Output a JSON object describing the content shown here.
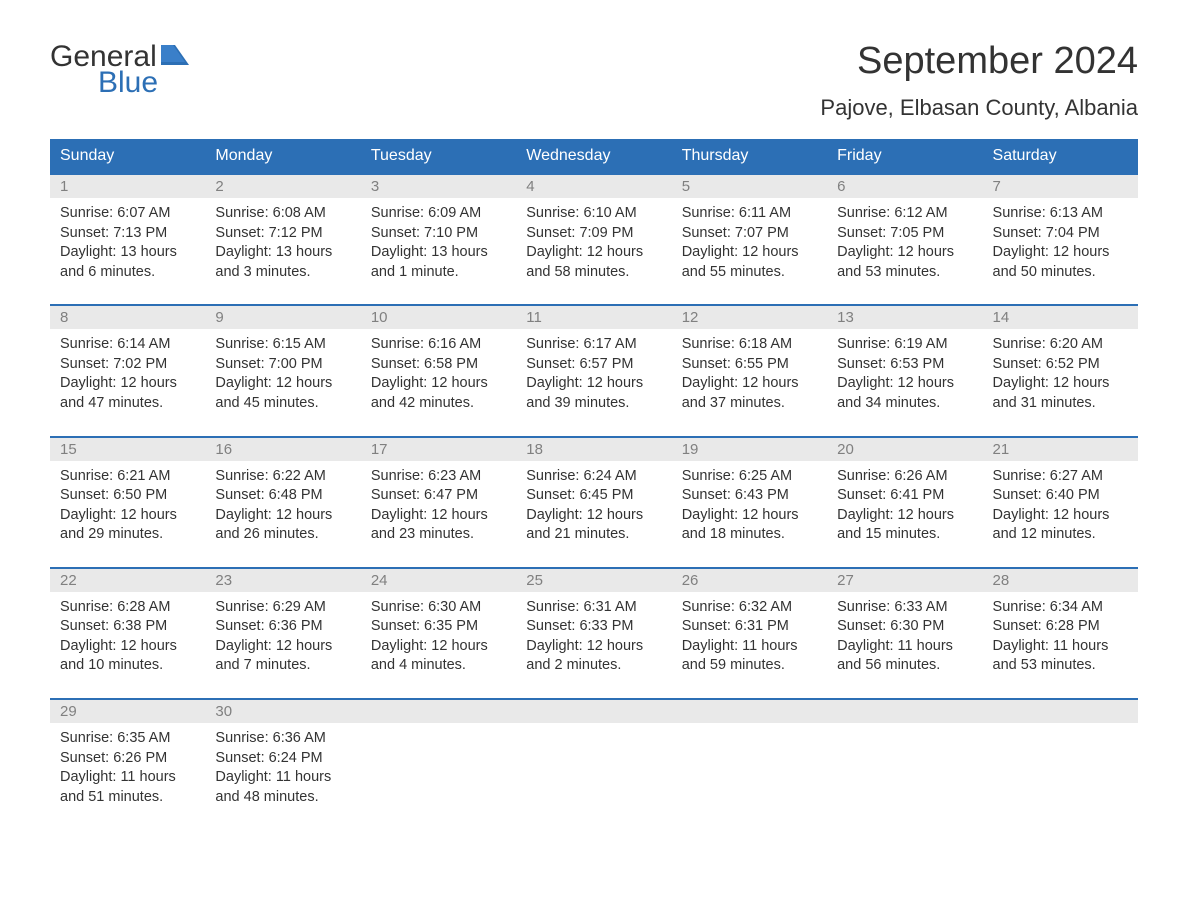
{
  "logo": {
    "text1": "General",
    "text2": "Blue",
    "color_general": "#333333",
    "color_blue": "#2c6fb5"
  },
  "title": "September 2024",
  "location": "Pajove, Elbasan County, Albania",
  "header_bg": "#2c6fb5",
  "header_text_color": "#ffffff",
  "daynum_bg": "#e9e9e9",
  "daynum_color": "#808080",
  "border_color": "#2c6fb5",
  "body_text_color": "#333333",
  "days_of_week": [
    "Sunday",
    "Monday",
    "Tuesday",
    "Wednesday",
    "Thursday",
    "Friday",
    "Saturday"
  ],
  "weeks": [
    [
      {
        "num": "1",
        "sunrise": "Sunrise: 6:07 AM",
        "sunset": "Sunset: 7:13 PM",
        "daylight1": "Daylight: 13 hours",
        "daylight2": "and 6 minutes."
      },
      {
        "num": "2",
        "sunrise": "Sunrise: 6:08 AM",
        "sunset": "Sunset: 7:12 PM",
        "daylight1": "Daylight: 13 hours",
        "daylight2": "and 3 minutes."
      },
      {
        "num": "3",
        "sunrise": "Sunrise: 6:09 AM",
        "sunset": "Sunset: 7:10 PM",
        "daylight1": "Daylight: 13 hours",
        "daylight2": "and 1 minute."
      },
      {
        "num": "4",
        "sunrise": "Sunrise: 6:10 AM",
        "sunset": "Sunset: 7:09 PM",
        "daylight1": "Daylight: 12 hours",
        "daylight2": "and 58 minutes."
      },
      {
        "num": "5",
        "sunrise": "Sunrise: 6:11 AM",
        "sunset": "Sunset: 7:07 PM",
        "daylight1": "Daylight: 12 hours",
        "daylight2": "and 55 minutes."
      },
      {
        "num": "6",
        "sunrise": "Sunrise: 6:12 AM",
        "sunset": "Sunset: 7:05 PM",
        "daylight1": "Daylight: 12 hours",
        "daylight2": "and 53 minutes."
      },
      {
        "num": "7",
        "sunrise": "Sunrise: 6:13 AM",
        "sunset": "Sunset: 7:04 PM",
        "daylight1": "Daylight: 12 hours",
        "daylight2": "and 50 minutes."
      }
    ],
    [
      {
        "num": "8",
        "sunrise": "Sunrise: 6:14 AM",
        "sunset": "Sunset: 7:02 PM",
        "daylight1": "Daylight: 12 hours",
        "daylight2": "and 47 minutes."
      },
      {
        "num": "9",
        "sunrise": "Sunrise: 6:15 AM",
        "sunset": "Sunset: 7:00 PM",
        "daylight1": "Daylight: 12 hours",
        "daylight2": "and 45 minutes."
      },
      {
        "num": "10",
        "sunrise": "Sunrise: 6:16 AM",
        "sunset": "Sunset: 6:58 PM",
        "daylight1": "Daylight: 12 hours",
        "daylight2": "and 42 minutes."
      },
      {
        "num": "11",
        "sunrise": "Sunrise: 6:17 AM",
        "sunset": "Sunset: 6:57 PM",
        "daylight1": "Daylight: 12 hours",
        "daylight2": "and 39 minutes."
      },
      {
        "num": "12",
        "sunrise": "Sunrise: 6:18 AM",
        "sunset": "Sunset: 6:55 PM",
        "daylight1": "Daylight: 12 hours",
        "daylight2": "and 37 minutes."
      },
      {
        "num": "13",
        "sunrise": "Sunrise: 6:19 AM",
        "sunset": "Sunset: 6:53 PM",
        "daylight1": "Daylight: 12 hours",
        "daylight2": "and 34 minutes."
      },
      {
        "num": "14",
        "sunrise": "Sunrise: 6:20 AM",
        "sunset": "Sunset: 6:52 PM",
        "daylight1": "Daylight: 12 hours",
        "daylight2": "and 31 minutes."
      }
    ],
    [
      {
        "num": "15",
        "sunrise": "Sunrise: 6:21 AM",
        "sunset": "Sunset: 6:50 PM",
        "daylight1": "Daylight: 12 hours",
        "daylight2": "and 29 minutes."
      },
      {
        "num": "16",
        "sunrise": "Sunrise: 6:22 AM",
        "sunset": "Sunset: 6:48 PM",
        "daylight1": "Daylight: 12 hours",
        "daylight2": "and 26 minutes."
      },
      {
        "num": "17",
        "sunrise": "Sunrise: 6:23 AM",
        "sunset": "Sunset: 6:47 PM",
        "daylight1": "Daylight: 12 hours",
        "daylight2": "and 23 minutes."
      },
      {
        "num": "18",
        "sunrise": "Sunrise: 6:24 AM",
        "sunset": "Sunset: 6:45 PM",
        "daylight1": "Daylight: 12 hours",
        "daylight2": "and 21 minutes."
      },
      {
        "num": "19",
        "sunrise": "Sunrise: 6:25 AM",
        "sunset": "Sunset: 6:43 PM",
        "daylight1": "Daylight: 12 hours",
        "daylight2": "and 18 minutes."
      },
      {
        "num": "20",
        "sunrise": "Sunrise: 6:26 AM",
        "sunset": "Sunset: 6:41 PM",
        "daylight1": "Daylight: 12 hours",
        "daylight2": "and 15 minutes."
      },
      {
        "num": "21",
        "sunrise": "Sunrise: 6:27 AM",
        "sunset": "Sunset: 6:40 PM",
        "daylight1": "Daylight: 12 hours",
        "daylight2": "and 12 minutes."
      }
    ],
    [
      {
        "num": "22",
        "sunrise": "Sunrise: 6:28 AM",
        "sunset": "Sunset: 6:38 PM",
        "daylight1": "Daylight: 12 hours",
        "daylight2": "and 10 minutes."
      },
      {
        "num": "23",
        "sunrise": "Sunrise: 6:29 AM",
        "sunset": "Sunset: 6:36 PM",
        "daylight1": "Daylight: 12 hours",
        "daylight2": "and 7 minutes."
      },
      {
        "num": "24",
        "sunrise": "Sunrise: 6:30 AM",
        "sunset": "Sunset: 6:35 PM",
        "daylight1": "Daylight: 12 hours",
        "daylight2": "and 4 minutes."
      },
      {
        "num": "25",
        "sunrise": "Sunrise: 6:31 AM",
        "sunset": "Sunset: 6:33 PM",
        "daylight1": "Daylight: 12 hours",
        "daylight2": "and 2 minutes."
      },
      {
        "num": "26",
        "sunrise": "Sunrise: 6:32 AM",
        "sunset": "Sunset: 6:31 PM",
        "daylight1": "Daylight: 11 hours",
        "daylight2": "and 59 minutes."
      },
      {
        "num": "27",
        "sunrise": "Sunrise: 6:33 AM",
        "sunset": "Sunset: 6:30 PM",
        "daylight1": "Daylight: 11 hours",
        "daylight2": "and 56 minutes."
      },
      {
        "num": "28",
        "sunrise": "Sunrise: 6:34 AM",
        "sunset": "Sunset: 6:28 PM",
        "daylight1": "Daylight: 11 hours",
        "daylight2": "and 53 minutes."
      }
    ],
    [
      {
        "num": "29",
        "sunrise": "Sunrise: 6:35 AM",
        "sunset": "Sunset: 6:26 PM",
        "daylight1": "Daylight: 11 hours",
        "daylight2": "and 51 minutes."
      },
      {
        "num": "30",
        "sunrise": "Sunrise: 6:36 AM",
        "sunset": "Sunset: 6:24 PM",
        "daylight1": "Daylight: 11 hours",
        "daylight2": "and 48 minutes."
      },
      {
        "empty": true
      },
      {
        "empty": true
      },
      {
        "empty": true
      },
      {
        "empty": true
      },
      {
        "empty": true
      }
    ]
  ]
}
